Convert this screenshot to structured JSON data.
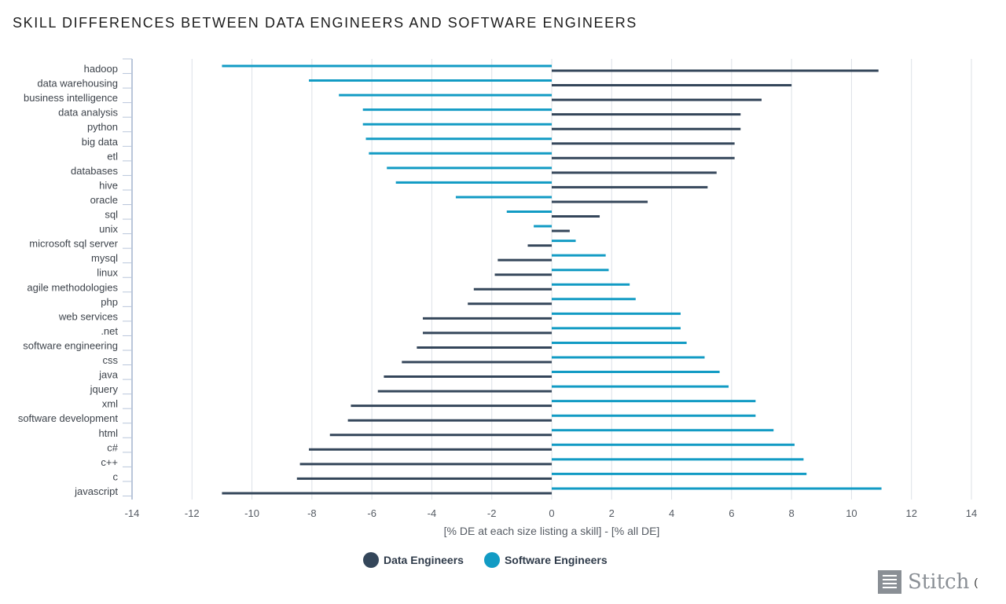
{
  "title": "SKILL DIFFERENCES BETWEEN DATA ENGINEERS AND SOFTWARE ENGINEERS",
  "colors": {
    "data_engineers": "#34465a",
    "software_engineers": "#129bc4",
    "grid": "#dde1e6",
    "axis": "#b9c6da",
    "tick": "#555b63"
  },
  "legend": {
    "data_engineers": "Data Engineers",
    "software_engineers": "Software Engineers"
  },
  "logo": {
    "text": "Stitch",
    "trailing": "("
  },
  "chart_data": {
    "type": "bar",
    "orientation": "horizontal",
    "xlabel": "[% DE at each size listing a skill] - [% all DE]",
    "xlim": [
      -14,
      14
    ],
    "xticks": [
      -14,
      -12,
      -10,
      -8,
      -6,
      -4,
      -2,
      0,
      2,
      4,
      6,
      8,
      10,
      12,
      14
    ],
    "categories": [
      "hadoop",
      "data warehousing",
      "business intelligence",
      "data analysis",
      "python",
      "big data",
      "etl",
      "databases",
      "hive",
      "oracle",
      "sql",
      "unix",
      "microsoft sql server",
      "mysql",
      "linux",
      "agile methodologies",
      "php",
      "web services",
      ".net",
      "software engineering",
      "css",
      "java",
      "jquery",
      "xml",
      "software development",
      "html",
      "c#",
      "c++",
      "c",
      "javascript"
    ],
    "series": [
      {
        "name": "Data Engineers",
        "values": [
          10.9,
          8.0,
          7.0,
          6.3,
          6.3,
          6.1,
          6.1,
          5.5,
          5.2,
          3.2,
          1.6,
          0.6,
          -0.8,
          -1.8,
          -1.9,
          -2.6,
          -2.8,
          -4.3,
          -4.3,
          -4.5,
          -5.0,
          -5.6,
          -5.8,
          -6.7,
          -6.8,
          -7.4,
          -8.1,
          -8.4,
          -8.5,
          -11.0
        ]
      },
      {
        "name": "Software Engineers",
        "values": [
          -11.0,
          -8.1,
          -7.1,
          -6.3,
          -6.3,
          -6.2,
          -6.1,
          -5.5,
          -5.2,
          -3.2,
          -1.5,
          -0.6,
          0.8,
          1.8,
          1.9,
          2.6,
          2.8,
          4.3,
          4.3,
          4.5,
          5.1,
          5.6,
          5.9,
          6.8,
          6.8,
          7.4,
          8.1,
          8.4,
          8.5,
          11.0
        ]
      }
    ]
  }
}
